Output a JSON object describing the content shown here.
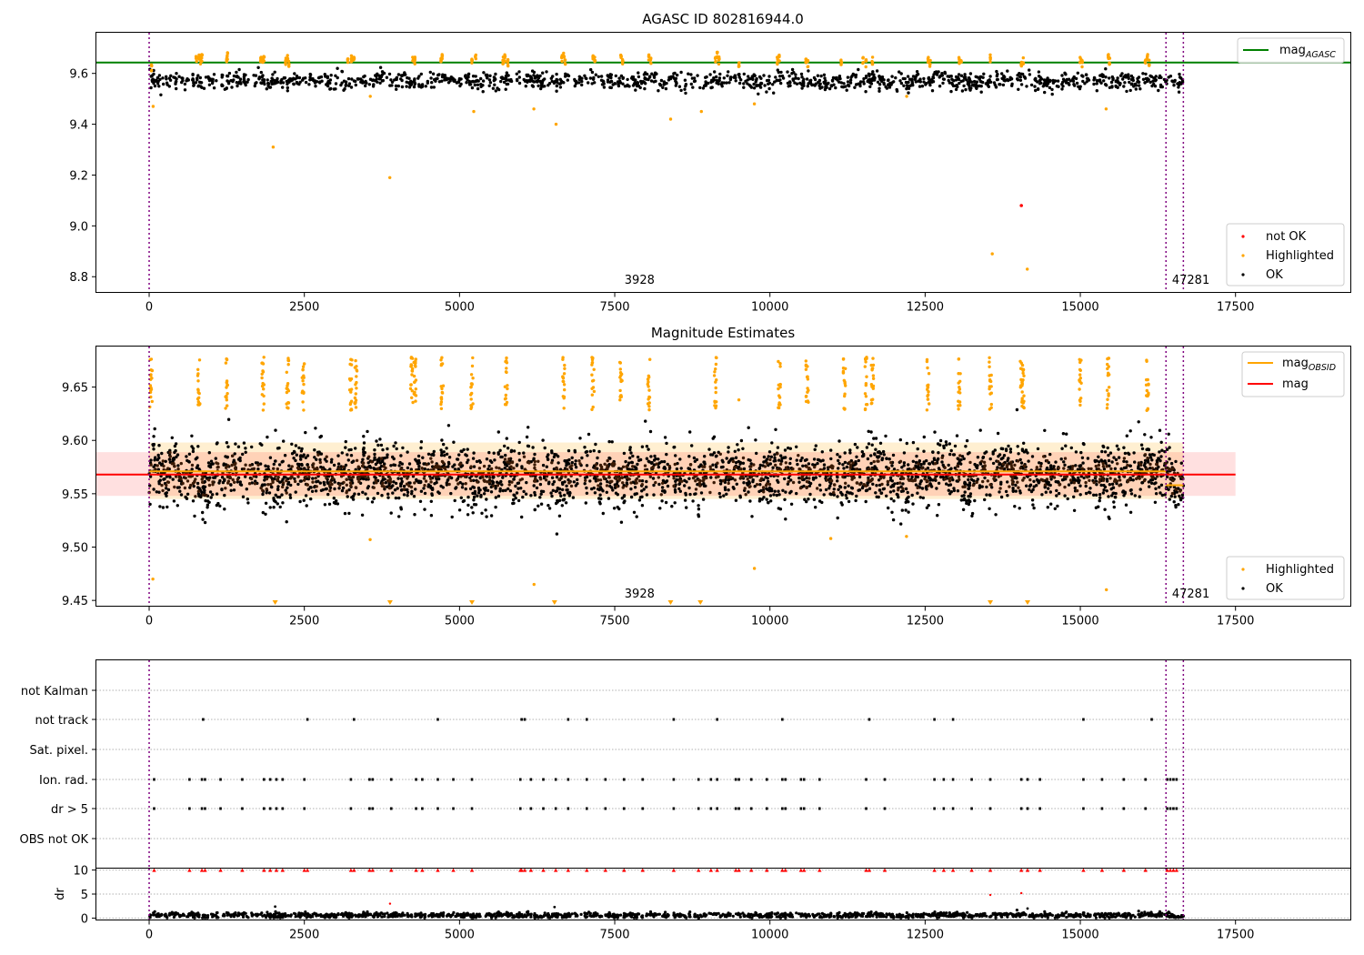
{
  "chart_data": [
    {
      "type": "scatter",
      "title": "AGASC ID 802816944.0",
      "xlim": [
        -850,
        19350
      ],
      "ylim": [
        8.74,
        9.76
      ],
      "xticks": [
        "0",
        "2500",
        "5000",
        "7500",
        "10000",
        "12500",
        "15000",
        "17500"
      ],
      "yticks": [
        "8.8",
        "9.0",
        "9.2",
        "9.4",
        "9.6"
      ],
      "hline": {
        "name": "mag_AGASC",
        "y": 9.643,
        "color": "#008000"
      },
      "vlines": [
        0,
        16380,
        16660
      ],
      "obs_labels": [
        {
          "text": "3928",
          "x": 7900
        },
        {
          "text": "47281",
          "x": 16780
        }
      ],
      "legends": [
        {
          "position": "top-right",
          "entries": [
            {
              "label": "mag",
              "sub": "AGASC",
              "marker": "line",
              "color": "#008000"
            }
          ]
        },
        {
          "position": "bottom-right",
          "entries": [
            {
              "label": "not OK",
              "marker": "dot",
              "color": "#ff0000"
            },
            {
              "label": "Highlighted",
              "marker": "dot",
              "color": "#ffa500"
            },
            {
              "label": "OK",
              "marker": "dot",
              "color": "#000000"
            }
          ]
        }
      ],
      "series": [
        {
          "name": "OK",
          "color": "#000000",
          "band": {
            "x": [
              0,
              16660
            ],
            "center": 9.57,
            "spread": 0.022
          }
        },
        {
          "name": "Highlighted",
          "color": "#ffa500",
          "x": [
            40,
            60,
            760,
            800,
            830,
            850,
            1250,
            1260,
            1800,
            1830,
            1850,
            2000,
            2200,
            2230,
            2250,
            3200,
            3260,
            3300,
            3560,
            3880,
            4250,
            4280,
            4700,
            4720,
            5200,
            5230,
            5260,
            5700,
            5730,
            5780,
            6200,
            6550,
            6650,
            6680,
            6700,
            7150,
            7180,
            7600,
            7630,
            8050,
            8080,
            8400,
            8900,
            9120,
            9150,
            9180,
            9500,
            9750,
            10120,
            10150,
            10580,
            10610,
            11150,
            11500,
            11550,
            11650,
            12200,
            12550,
            12580,
            13050,
            13080,
            13550,
            13580,
            14050,
            14080,
            14150,
            15000,
            15030,
            15420,
            15450,
            15470,
            16050,
            16080,
            16110
          ],
          "y": [
            9.62,
            9.47,
            9.66,
            9.67,
            9.65,
            9.66,
            9.66,
            9.67,
            9.66,
            9.65,
            9.66,
            9.31,
            9.65,
            9.66,
            9.64,
            9.65,
            9.66,
            9.65,
            9.51,
            9.19,
            9.66,
            9.65,
            9.66,
            9.67,
            9.65,
            9.45,
            9.66,
            9.65,
            9.66,
            9.64,
            9.46,
            9.4,
            9.66,
            9.67,
            9.65,
            9.66,
            9.65,
            9.66,
            9.65,
            9.66,
            9.65,
            9.42,
            9.45,
            9.66,
            9.67,
            9.65,
            9.64,
            9.48,
            9.65,
            9.66,
            9.65,
            9.64,
            9.64,
            9.65,
            9.64,
            9.65,
            9.51,
            9.65,
            9.64,
            9.65,
            9.64,
            9.66,
            8.89,
            9.64,
            9.65,
            8.83,
            9.65,
            9.64,
            9.46,
            9.66,
            9.65,
            9.65,
            9.66,
            9.64
          ]
        },
        {
          "name": "not OK",
          "color": "#ff0000",
          "x": [
            14050
          ],
          "y": [
            9.08
          ]
        }
      ]
    },
    {
      "type": "scatter",
      "title": "Magnitude Estimates",
      "xlim": [
        -850,
        19350
      ],
      "ylim": [
        9.445,
        9.688
      ],
      "xticks": [
        "0",
        "2500",
        "5000",
        "7500",
        "10000",
        "12500",
        "15000",
        "17500"
      ],
      "yticks": [
        "9.45",
        "9.50",
        "9.55",
        "9.60",
        "9.65"
      ],
      "hlines": [
        {
          "name": "mag_OBSID",
          "color": "#ffa500",
          "segments": [
            {
              "x": [
                0,
                16380
              ],
              "y": 9.571
            },
            {
              "x": [
                16380,
                16660
              ],
              "y": 9.558
            }
          ]
        },
        {
          "name": "mag",
          "color": "#ff0000",
          "x": [
            -850,
            17500
          ],
          "y": 9.568,
          "band": [
            9.548,
            9.589
          ]
        }
      ],
      "orange_band": [
        9.545,
        9.598
      ],
      "vlines": [
        0,
        16380,
        16660
      ],
      "obs_labels": [
        {
          "text": "3928",
          "x": 7900
        },
        {
          "text": "47281",
          "x": 16780
        }
      ],
      "legends": [
        {
          "position": "top-right",
          "entries": [
            {
              "label": "mag",
              "sub": "OBSID",
              "marker": "line",
              "color": "#ffa500"
            },
            {
              "label": "mag",
              "marker": "line",
              "color": "#ff0000"
            }
          ]
        },
        {
          "position": "bottom-right",
          "entries": [
            {
              "label": "Highlighted",
              "marker": "dot",
              "color": "#ffa500"
            },
            {
              "label": "OK",
              "marker": "dot",
              "color": "#000000"
            }
          ]
        }
      ],
      "series": [
        {
          "name": "OK",
          "color": "#000000",
          "band": {
            "x": [
              0,
              16660
            ],
            "center": 9.568,
            "spread": 0.02
          }
        },
        {
          "name": "Highlighted",
          "color": "#ffa500",
          "clusters_x": [
            30,
            800,
            1250,
            1830,
            2230,
            2480,
            3250,
            3330,
            4230,
            4280,
            4720,
            5200,
            5750,
            6680,
            7150,
            7600,
            8050,
            9120,
            10150,
            10600,
            11200,
            11550,
            11650,
            12550,
            13050,
            13550,
            14050,
            14080,
            15000,
            15450,
            16080
          ],
          "outliers_x": [
            60,
            3560,
            6200,
            9500,
            9750,
            10980,
            12200,
            15420
          ],
          "outliers_y": [
            9.47,
            9.507,
            9.465,
            9.638,
            9.48,
            9.508,
            9.51,
            9.46
          ],
          "below_axis_x": [
            2030,
            3880,
            5200,
            6530,
            8400,
            8880,
            13550,
            14150
          ]
        }
      ]
    },
    {
      "type": "scatter",
      "title": "",
      "xlim": [
        -850,
        19350
      ],
      "xticks": [
        "0",
        "2500",
        "5000",
        "7500",
        "10000",
        "12500",
        "15000",
        "17500"
      ],
      "categories": [
        "not Kalman",
        "not track",
        "Sat. pixel.",
        "Ion. rad.",
        "dr > 5",
        "OBS not OK"
      ],
      "vlines": [
        0,
        16380,
        16660
      ],
      "flags": {
        "not track": [
          870,
          2550,
          3300,
          4650,
          6000,
          6050,
          6750,
          7050,
          8450,
          9150,
          10200,
          11600,
          12650,
          12950,
          15050,
          16150
        ],
        "Ion. rad.": [
          80,
          650,
          850,
          900,
          1150,
          1500,
          1850,
          1950,
          2050,
          2150,
          2500,
          3250,
          3550,
          3600,
          3900,
          4300,
          4400,
          4650,
          4900,
          5200,
          5980,
          6150,
          6350,
          6550,
          6750,
          7050,
          7350,
          7650,
          7950,
          8450,
          8850,
          9050,
          9150,
          9450,
          9500,
          9700,
          9950,
          10200,
          10250,
          10500,
          10550,
          10800,
          11550,
          11850,
          12650,
          12800,
          12950,
          13250,
          13550,
          14050,
          14150,
          14350,
          15050,
          15350,
          15700,
          16050,
          16400,
          16450,
          16500,
          16550
        ],
        "dr > 5": [
          80,
          650,
          850,
          900,
          1150,
          1500,
          1850,
          1950,
          2050,
          2150,
          2500,
          3250,
          3550,
          3600,
          3900,
          4300,
          4400,
          4650,
          4900,
          5200,
          5980,
          6150,
          6350,
          6550,
          6750,
          7050,
          7350,
          7650,
          7950,
          8450,
          8850,
          9050,
          9150,
          9450,
          9500,
          9700,
          9950,
          10200,
          10250,
          10500,
          10550,
          10800,
          11550,
          11850,
          12650,
          12800,
          12950,
          13250,
          13550,
          14050,
          14150,
          14350,
          15050,
          15350,
          15700,
          16050,
          16400,
          16450,
          16500,
          16550
        ]
      }
    },
    {
      "type": "scatter",
      "ylabel": "dr",
      "xlim": [
        -850,
        19350
      ],
      "ylim": [
        -0.3,
        10.3
      ],
      "xticks": [
        "0",
        "2500",
        "5000",
        "7500",
        "10000",
        "12500",
        "15000",
        "17500"
      ],
      "yticks": [
        "0",
        "5",
        "10"
      ],
      "vlines": [
        0,
        16380,
        16660
      ],
      "series": [
        {
          "name": "OK",
          "color": "#000000",
          "band": {
            "x": [
              0,
              16660
            ],
            "center": 0.6,
            "spread": 0.35
          },
          "extra_x": [
            2030,
            6530,
            14150
          ],
          "extra_y": [
            2.4,
            2.3,
            2.0
          ]
        },
        {
          "name": "not OK",
          "color": "#ff0000",
          "at_ceiling_x": [
            80,
            650,
            850,
            900,
            1150,
            1500,
            1850,
            1950,
            2050,
            2150,
            2500,
            2550,
            3250,
            3300,
            3550,
            3600,
            3900,
            4300,
            4400,
            4650,
            4900,
            5200,
            5980,
            6000,
            6050,
            6150,
            6350,
            6550,
            6750,
            7050,
            7350,
            7650,
            7950,
            8450,
            8850,
            9050,
            9150,
            9450,
            9500,
            9700,
            9950,
            10200,
            10250,
            10500,
            10550,
            10800,
            11550,
            11600,
            11850,
            12650,
            12800,
            12950,
            13250,
            13550,
            14050,
            14150,
            14350,
            15050,
            15350,
            15700,
            16050,
            16400,
            16450,
            16500,
            16550
          ],
          "x": [
            3880,
            13550,
            14050
          ],
          "y": [
            3.0,
            4.8,
            5.2
          ]
        }
      ]
    }
  ]
}
